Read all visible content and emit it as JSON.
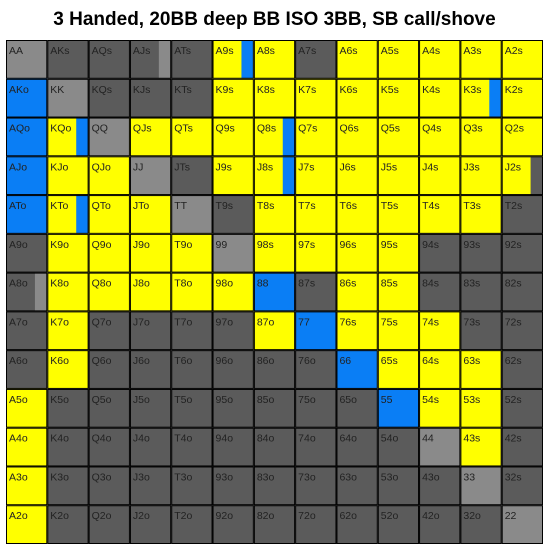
{
  "chart_data": {
    "type": "heatmap",
    "title": "3 Handed, 20BB deep BB ISO 3BB, SB call/shove",
    "legend": "none",
    "colors": {
      "yellow": "#ffff00",
      "blue": "#0a7ef5",
      "dark": "#5b5b5b",
      "light": "#8a8a8a",
      "border": "#000000"
    },
    "grid": [
      [
        "AA",
        "AKs",
        "AQs",
        "AJs",
        "ATs",
        "A9s",
        "A8s",
        "A7s",
        "A6s",
        "A5s",
        "A4s",
        "A3s",
        "A2s"
      ],
      [
        "AKo",
        "KK",
        "KQs",
        "KJs",
        "KTs",
        "K9s",
        "K8s",
        "K7s",
        "K6s",
        "K5s",
        "K4s",
        "K3s",
        "K2s"
      ],
      [
        "AQo",
        "KQo",
        "QQ",
        "QJs",
        "QTs",
        "Q9s",
        "Q8s",
        "Q7s",
        "Q6s",
        "Q5s",
        "Q4s",
        "Q3s",
        "Q2s"
      ],
      [
        "AJo",
        "KJo",
        "QJo",
        "JJ",
        "JTs",
        "J9s",
        "J8s",
        "J7s",
        "J6s",
        "J5s",
        "J4s",
        "J3s",
        "J2s"
      ],
      [
        "ATo",
        "KTo",
        "QTo",
        "JTo",
        "TT",
        "T9s",
        "T8s",
        "T7s",
        "T6s",
        "T5s",
        "T4s",
        "T3s",
        "T2s"
      ],
      [
        "A9o",
        "K9o",
        "Q9o",
        "J9o",
        "T9o",
        "99",
        "98s",
        "97s",
        "96s",
        "95s",
        "94s",
        "93s",
        "92s"
      ],
      [
        "A8o",
        "K8o",
        "Q8o",
        "J8o",
        "T8o",
        "98o",
        "88",
        "87s",
        "86s",
        "85s",
        "84s",
        "83s",
        "82s"
      ],
      [
        "A7o",
        "K7o",
        "Q7o",
        "J7o",
        "T7o",
        "97o",
        "87o",
        "77",
        "76s",
        "75s",
        "74s",
        "73s",
        "72s"
      ],
      [
        "A6o",
        "K6o",
        "Q6o",
        "J6o",
        "T6o",
        "96o",
        "86o",
        "76o",
        "66",
        "65s",
        "64s",
        "63s",
        "62s"
      ],
      [
        "A5o",
        "K5o",
        "Q5o",
        "J5o",
        "T5o",
        "95o",
        "85o",
        "75o",
        "65o",
        "55",
        "54s",
        "53s",
        "52s"
      ],
      [
        "A4o",
        "K4o",
        "Q4o",
        "J4o",
        "T4o",
        "94o",
        "84o",
        "74o",
        "64o",
        "54o",
        "44",
        "43s",
        "42s"
      ],
      [
        "A3o",
        "K3o",
        "Q3o",
        "J3o",
        "T3o",
        "93o",
        "83o",
        "73o",
        "63o",
        "53o",
        "43o",
        "33",
        "32s"
      ],
      [
        "A2o",
        "K2o",
        "Q2o",
        "J2o",
        "T2o",
        "92o",
        "82o",
        "72o",
        "62o",
        "52o",
        "42o",
        "32o",
        "22"
      ]
    ],
    "shading": [
      [
        "L",
        "D",
        "D",
        "D",
        "D",
        "Y",
        "Y",
        "D",
        "Y",
        "Y",
        "Y",
        "Y",
        "Y"
      ],
      [
        "B",
        "L",
        "D",
        "D",
        "D",
        "Y",
        "Y",
        "Y",
        "Y",
        "Y",
        "Y",
        "Y",
        "Y"
      ],
      [
        "B",
        "Y",
        "L",
        "Y",
        "Y",
        "Y",
        "Y",
        "Y",
        "Y",
        "Y",
        "Y",
        "Y",
        "Y"
      ],
      [
        "B",
        "Y",
        "Y",
        "L",
        "D",
        "Y",
        "Y",
        "Y",
        "Y",
        "Y",
        "Y",
        "Y",
        "Y"
      ],
      [
        "B",
        "Y",
        "Y",
        "Y",
        "L",
        "D",
        "Y",
        "Y",
        "Y",
        "Y",
        "Y",
        "Y",
        "D"
      ],
      [
        "D",
        "Y",
        "Y",
        "Y",
        "Y",
        "L",
        "Y",
        "Y",
        "Y",
        "Y",
        "D",
        "D",
        "D"
      ],
      [
        "D",
        "Y",
        "Y",
        "Y",
        "Y",
        "Y",
        "B",
        "D",
        "Y",
        "Y",
        "D",
        "D",
        "D"
      ],
      [
        "D",
        "Y",
        "D",
        "D",
        "D",
        "D",
        "Y",
        "B",
        "Y",
        "Y",
        "Y",
        "D",
        "D"
      ],
      [
        "D",
        "Y",
        "D",
        "D",
        "D",
        "D",
        "D",
        "D",
        "B",
        "Y",
        "Y",
        "Y",
        "D"
      ],
      [
        "Y",
        "D",
        "D",
        "D",
        "D",
        "D",
        "D",
        "D",
        "D",
        "B",
        "Y",
        "Y",
        "D"
      ],
      [
        "Y",
        "D",
        "D",
        "D",
        "D",
        "D",
        "D",
        "D",
        "D",
        "D",
        "L",
        "Y",
        "D"
      ],
      [
        "Y",
        "D",
        "D",
        "D",
        "D",
        "D",
        "D",
        "D",
        "D",
        "D",
        "D",
        "L",
        "D"
      ],
      [
        "Y",
        "D",
        "D",
        "D",
        "D",
        "D",
        "D",
        "D",
        "D",
        "D",
        "D",
        "D",
        "L"
      ]
    ],
    "split_cells": [
      {
        "hand": "A9s",
        "base": "Y",
        "split": "B",
        "fraction": 0.3
      },
      {
        "hand": "K3s",
        "base": "Y",
        "split": "B",
        "fraction": 0.3
      },
      {
        "hand": "KQo",
        "base": "Y",
        "split": "B",
        "fraction": 0.3
      },
      {
        "hand": "Q8s",
        "base": "Y",
        "split": "B",
        "fraction": 0.3
      },
      {
        "hand": "J8s",
        "base": "Y",
        "split": "B",
        "fraction": 0.3
      },
      {
        "hand": "J2s",
        "base": "Y",
        "split": "D",
        "fraction": 0.3
      },
      {
        "hand": "KTo",
        "base": "Y",
        "split": "B",
        "fraction": 0.3
      },
      {
        "hand": "AJs",
        "base": "D",
        "split": "L",
        "fraction": 0.3
      },
      {
        "hand": "A8o",
        "base": "D",
        "split": "L",
        "fraction": 0.3
      }
    ]
  }
}
